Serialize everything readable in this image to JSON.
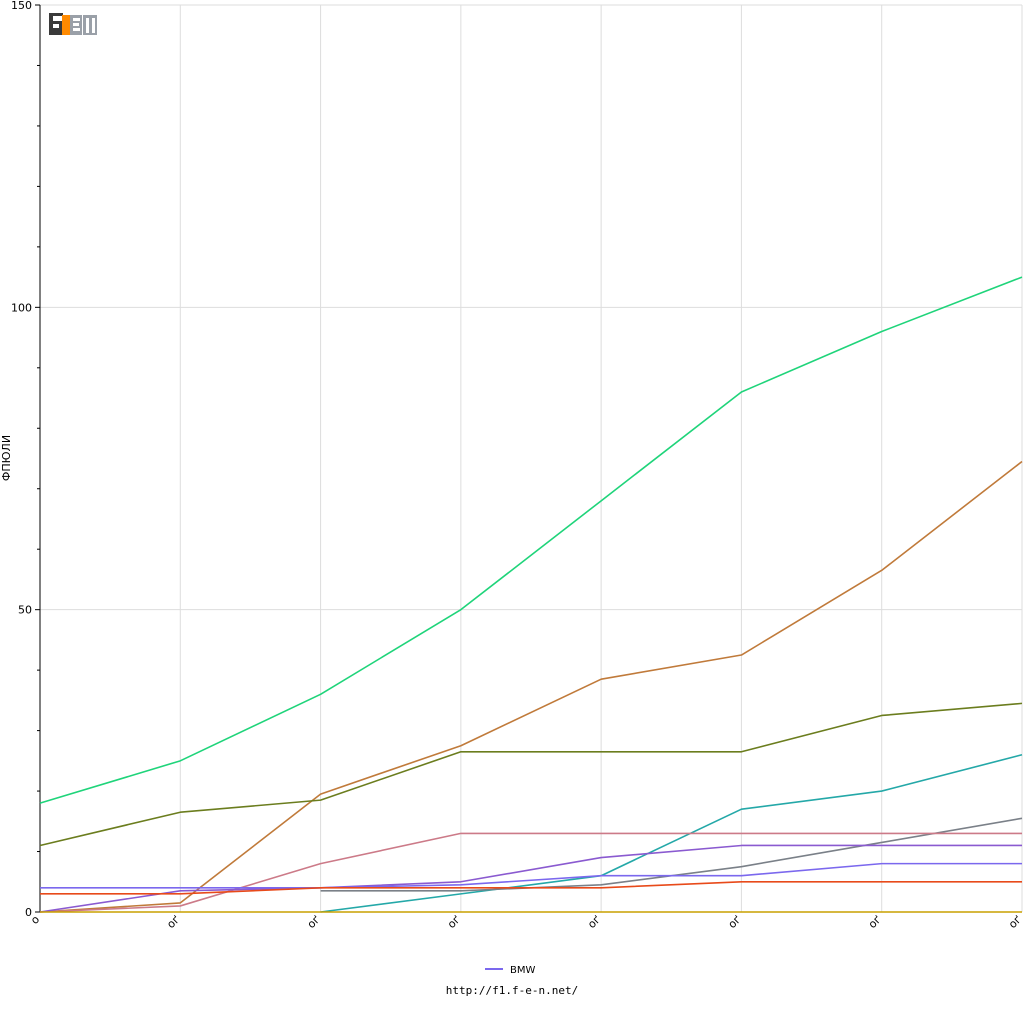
{
  "logo": {
    "text": "F1EN"
  },
  "footer": {
    "url": "http://f1.f-e-n.net/"
  },
  "chart_data": {
    "type": "line",
    "title": "",
    "xlabel": "",
    "ylabel": "ФПЮЛИ",
    "ylim": [
      0,
      150
    ],
    "yticks": [
      0,
      50,
      100,
      150
    ],
    "grid": true,
    "legend_position": "bottom-center",
    "x_tick_labels": [
      "о",
      "оґ",
      "оґ",
      "оґ",
      "оґ",
      "оґ",
      "оґ",
      "оґ"
    ],
    "x": [
      0,
      1,
      2,
      3,
      4,
      5,
      6,
      7
    ],
    "series": [
      {
        "name": "",
        "color": "#1fd47a",
        "values": [
          18,
          25,
          36,
          50,
          68,
          86,
          96,
          105
        ]
      },
      {
        "name": "",
        "color": "#c07a3a",
        "values": [
          0,
          1.5,
          19.5,
          27.5,
          38.5,
          42.5,
          56.5,
          74.5
        ]
      },
      {
        "name": "",
        "color": "#6b7d1e",
        "values": [
          11,
          16.5,
          18.5,
          26.5,
          26.5,
          26.5,
          32.5,
          34.5
        ]
      },
      {
        "name": "",
        "color": "#24a8a8",
        "values": [
          null,
          null,
          0,
          3,
          6,
          17,
          20,
          26
        ]
      },
      {
        "name": "",
        "color": "#7a8088",
        "values": [
          null,
          null,
          3.5,
          3.5,
          4.5,
          7.5,
          11.5,
          15.5
        ]
      },
      {
        "name": "",
        "color": "#cc7a88",
        "values": [
          0,
          1,
          8,
          13,
          13,
          13,
          13,
          13
        ]
      },
      {
        "name": "",
        "color": "#8a5ad0",
        "values": [
          0,
          3.5,
          4,
          5,
          9,
          11,
          11,
          11
        ]
      },
      {
        "name": "BMW",
        "color": "#7b68ee",
        "values": [
          4,
          4,
          4,
          4.5,
          6,
          6,
          8,
          8
        ]
      },
      {
        "name": "",
        "color": "#e84a1a",
        "values": [
          3,
          3,
          4,
          4,
          4,
          5,
          5,
          5
        ]
      },
      {
        "name": "",
        "color": "#c8a000",
        "values": [
          0,
          0,
          0,
          0,
          0,
          0,
          0,
          0
        ]
      }
    ]
  }
}
